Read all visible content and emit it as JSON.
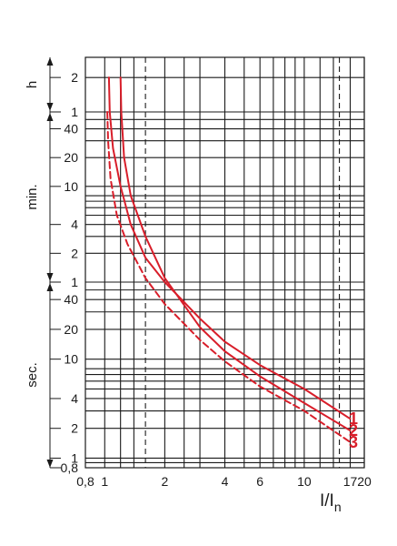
{
  "chart_data": {
    "type": "line",
    "title": "",
    "xlabel": "I/I",
    "xlabel_sub": "n",
    "x_scale": "log",
    "y_scale": "log-segmented",
    "xlim": [
      0.8,
      20
    ],
    "x_ticks": [
      {
        "value": 0.8,
        "label": "0,8"
      },
      {
        "value": 1,
        "label": "1"
      },
      {
        "value": 2,
        "label": "2"
      },
      {
        "value": 4,
        "label": "4"
      },
      {
        "value": 6,
        "label": "6"
      },
      {
        "value": 10,
        "label": "10"
      },
      {
        "value": 17,
        "label": "17"
      },
      {
        "value": 20,
        "label": "20"
      }
    ],
    "x_gridlines": [
      1,
      1.2,
      1.4,
      2,
      2.5,
      3,
      4,
      5,
      6,
      7,
      8,
      9,
      10,
      12,
      14,
      17,
      20
    ],
    "x_dashed": [
      1.6,
      15
    ],
    "y_segments": [
      {
        "unit": "sec.",
        "range": [
          0.8,
          60
        ],
        "ticks": [
          {
            "value": 0.8,
            "label": "0,8"
          },
          {
            "value": 1,
            "label": "1"
          },
          {
            "value": 2,
            "label": "2"
          },
          {
            "value": 4,
            "label": "4"
          },
          {
            "value": 10,
            "label": "10"
          },
          {
            "value": 20,
            "label": "20"
          },
          {
            "value": 40,
            "label": "40"
          }
        ]
      },
      {
        "unit": "min.",
        "range": [
          1,
          60
        ],
        "ticks": [
          {
            "value": 1,
            "label": "1"
          },
          {
            "value": 2,
            "label": "2"
          },
          {
            "value": 4,
            "label": "4"
          },
          {
            "value": 10,
            "label": "10"
          },
          {
            "value": 20,
            "label": "20"
          },
          {
            "value": 40,
            "label": "40"
          }
        ]
      },
      {
        "unit": "h",
        "range": [
          1,
          3
        ],
        "ticks": [
          {
            "value": 1,
            "label": "1"
          },
          {
            "value": 2,
            "label": "2"
          }
        ]
      }
    ],
    "y_gridlines_seconds": [
      0.8,
      0.9,
      1,
      2,
      3,
      4,
      5,
      6,
      7,
      8,
      10,
      20,
      30,
      40,
      50,
      60,
      120,
      180,
      240,
      300,
      360,
      420,
      480,
      600,
      1200,
      1800,
      2400,
      3000,
      3600,
      7200,
      10800
    ],
    "series": [
      {
        "name": "1",
        "style": "solid",
        "color": "#d81e2a",
        "x": [
          1.05,
          1.06,
          1.1,
          1.2,
          1.35,
          1.6,
          2,
          3,
          4,
          6,
          10,
          17
        ],
        "y": [
          7200,
          3600,
          1500,
          600,
          240,
          108,
          60,
          25.7,
          15,
          8.7,
          5,
          2.5
        ]
      },
      {
        "name": "2",
        "style": "solid",
        "color": "#d81e2a",
        "x": [
          1.2,
          1.21,
          1.25,
          1.35,
          1.6,
          2,
          3,
          4,
          6,
          10,
          17
        ],
        "y": [
          7200,
          3600,
          1200,
          480,
          180,
          66,
          21,
          12,
          6.7,
          3.6,
          1.9
        ]
      },
      {
        "name": "3",
        "style": "dashed",
        "color": "#d81e2a",
        "x": [
          1.03,
          1.04,
          1.07,
          1.15,
          1.3,
          1.6,
          2,
          3,
          4,
          6,
          10,
          17
        ],
        "y": [
          3600,
          1800,
          720,
          300,
          150,
          66,
          36,
          15.6,
          9.5,
          5.3,
          3,
          1.45
        ]
      }
    ]
  }
}
